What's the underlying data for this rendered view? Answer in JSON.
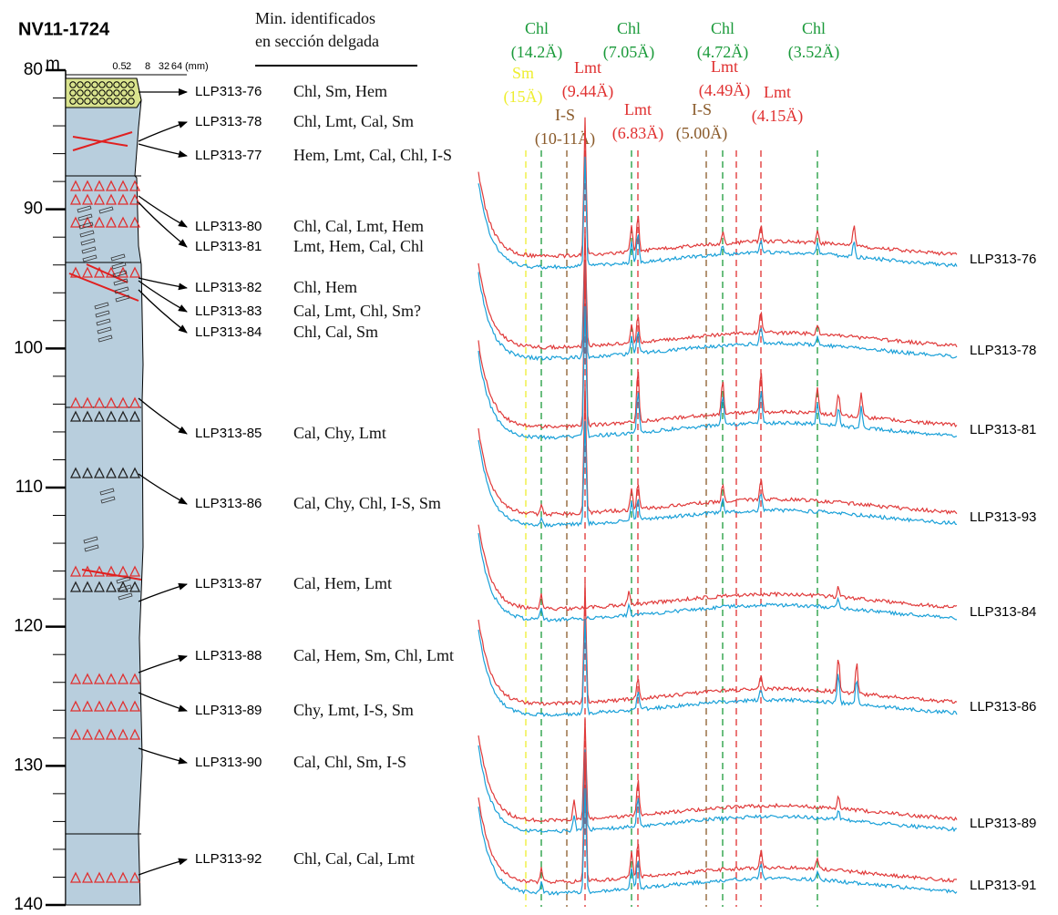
{
  "title": "NV11-1724",
  "depth_axis": {
    "unit": "m",
    "ticks": [
      80,
      90,
      100,
      110,
      120,
      130,
      140
    ]
  },
  "grain_scale": {
    "ticks": [
      0.5,
      2,
      8,
      32,
      64
    ],
    "unit": "(mm)"
  },
  "mineral_header": [
    "Min. identificados",
    "en sección delgada"
  ],
  "samples": [
    {
      "id": "LLP313-76",
      "minerals": "Chl, Sm, Hem"
    },
    {
      "id": "LLP313-78",
      "minerals": "Chl, Lmt, Cal, Sm"
    },
    {
      "id": "LLP313-77",
      "minerals": "Hem, Lmt, Cal, Chl, I-S"
    },
    {
      "id": "LLP313-80",
      "minerals": "Chl, Cal, Lmt, Hem"
    },
    {
      "id": "LLP313-81",
      "minerals": "Lmt, Hem, Cal, Chl"
    },
    {
      "id": "LLP313-82",
      "minerals": "Chl, Hem"
    },
    {
      "id": "LLP313-83",
      "minerals": "Cal, Lmt, Chl, Sm?"
    },
    {
      "id": "LLP313-84",
      "minerals": "Chl, Cal, Sm"
    },
    {
      "id": "LLP313-85",
      "minerals": "Cal, Chy, Lmt"
    },
    {
      "id": "LLP313-86",
      "minerals": "Cal, Chy, Chl, I-S, Sm"
    },
    {
      "id": "LLP313-87",
      "minerals": "Cal, Hem, Lmt"
    },
    {
      "id": "LLP313-88",
      "minerals": "Cal, Hem, Sm, Chl, Lmt"
    },
    {
      "id": "LLP313-89",
      "minerals": "Chy, Lmt, I-S, Sm"
    },
    {
      "id": "LLP313-90",
      "minerals": "Cal, Chl, Sm, I-S"
    },
    {
      "id": "LLP313-92",
      "minerals": "Chl, Cal, Cal, Lmt"
    }
  ],
  "xrd_peaks": [
    {
      "mineral": "Chl",
      "spacing": "(14.2Ä)"
    },
    {
      "mineral": "Sm",
      "spacing": "(15Ä)"
    },
    {
      "mineral": "I-S",
      "spacing": "(10-11Ä)"
    },
    {
      "mineral": "Lmt",
      "spacing": "(9.44Ä)"
    },
    {
      "mineral": "Chl",
      "spacing": "(7.05Ä)"
    },
    {
      "mineral": "Lmt",
      "spacing": "(6.83Ä)"
    },
    {
      "mineral": "I-S",
      "spacing": "(5.00Ä)"
    },
    {
      "mineral": "Chl",
      "spacing": "(4.72Ä)"
    },
    {
      "mineral": "Lmt",
      "spacing": "(4.49Ä)"
    },
    {
      "mineral": "Lmt",
      "spacing": "(4.15Ä)"
    },
    {
      "mineral": "Chl",
      "spacing": "(3.52Ä)"
    }
  ],
  "xrd_patterns": [
    "LLP313-76",
    "LLP313-78",
    "LLP313-81",
    "LLP313-93",
    "LLP313-84",
    "LLP313-86",
    "LLP313-89",
    "LLP313-91"
  ]
}
